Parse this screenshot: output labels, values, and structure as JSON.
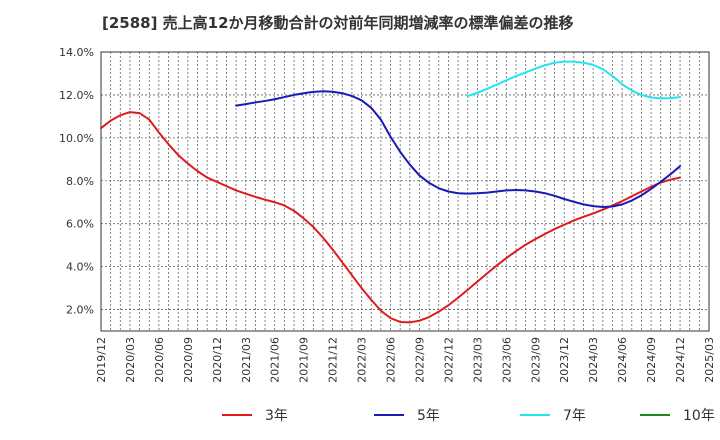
{
  "chart_data": {
    "type": "line",
    "title": "[2588]  売上高12か月移動合計の対前年同期増減率の標準偏差の推移",
    "xlabel": "",
    "ylabel": "",
    "ylim": [
      1.0,
      14.0
    ],
    "y_ticks": [
      2.0,
      4.0,
      6.0,
      8.0,
      10.0,
      12.0,
      14.0
    ],
    "y_tick_labels": [
      "2.0%",
      "4.0%",
      "6.0%",
      "8.0%",
      "10.0%",
      "12.0%",
      "14.0%"
    ],
    "x_tick_labels": [
      "2019/12",
      "2020/03",
      "2020/06",
      "2020/09",
      "2020/12",
      "2021/03",
      "2021/06",
      "2021/09",
      "2021/12",
      "2022/03",
      "2022/06",
      "2022/09",
      "2022/12",
      "2023/03",
      "2023/06",
      "2023/09",
      "2023/12",
      "2024/03",
      "2024/06",
      "2024/09",
      "2024/12",
      "2025/03"
    ],
    "grid": true,
    "legend_position": "bottom",
    "series": [
      {
        "name": "3年",
        "color": "#e01b1b",
        "points": [
          [
            "2019/12",
            10.45
          ],
          [
            "2020/01",
            10.8
          ],
          [
            "2020/02",
            11.05
          ],
          [
            "2020/03",
            11.2
          ],
          [
            "2020/04",
            11.15
          ],
          [
            "2020/05",
            10.85
          ],
          [
            "2020/06",
            10.25
          ],
          [
            "2020/07",
            9.7
          ],
          [
            "2020/08",
            9.2
          ],
          [
            "2020/09",
            8.8
          ],
          [
            "2020/10",
            8.45
          ],
          [
            "2020/11",
            8.15
          ],
          [
            "2020/12",
            7.95
          ],
          [
            "2021/01",
            7.75
          ],
          [
            "2021/02",
            7.55
          ],
          [
            "2021/03",
            7.4
          ],
          [
            "2021/04",
            7.25
          ],
          [
            "2021/05",
            7.12
          ],
          [
            "2021/06",
            7.0
          ],
          [
            "2021/07",
            6.85
          ],
          [
            "2021/08",
            6.6
          ],
          [
            "2021/09",
            6.25
          ],
          [
            "2021/10",
            5.85
          ],
          [
            "2021/11",
            5.35
          ],
          [
            "2021/12",
            4.8
          ],
          [
            "2022/01",
            4.2
          ],
          [
            "2022/02",
            3.6
          ],
          [
            "2022/03",
            3.0
          ],
          [
            "2022/04",
            2.45
          ],
          [
            "2022/05",
            1.95
          ],
          [
            "2022/06",
            1.6
          ],
          [
            "2022/07",
            1.42
          ],
          [
            "2022/08",
            1.4
          ],
          [
            "2022/09",
            1.48
          ],
          [
            "2022/10",
            1.65
          ],
          [
            "2022/11",
            1.9
          ],
          [
            "2022/12",
            2.2
          ],
          [
            "2023/01",
            2.55
          ],
          [
            "2023/02",
            2.92
          ],
          [
            "2023/03",
            3.3
          ],
          [
            "2023/04",
            3.68
          ],
          [
            "2023/05",
            4.05
          ],
          [
            "2023/06",
            4.4
          ],
          [
            "2023/07",
            4.72
          ],
          [
            "2023/08",
            5.02
          ],
          [
            "2023/09",
            5.28
          ],
          [
            "2023/10",
            5.52
          ],
          [
            "2023/11",
            5.75
          ],
          [
            "2023/12",
            5.95
          ],
          [
            "2024/01",
            6.15
          ],
          [
            "2024/02",
            6.32
          ],
          [
            "2024/03",
            6.48
          ],
          [
            "2024/04",
            6.65
          ],
          [
            "2024/05",
            6.85
          ],
          [
            "2024/06",
            7.05
          ],
          [
            "2024/07",
            7.28
          ],
          [
            "2024/08",
            7.5
          ],
          [
            "2024/09",
            7.72
          ],
          [
            "2024/10",
            7.92
          ],
          [
            "2024/11",
            8.05
          ],
          [
            "2024/12",
            8.15
          ]
        ]
      },
      {
        "name": "5年",
        "color": "#1a1ab8",
        "points": [
          [
            "2021/02",
            11.5
          ],
          [
            "2021/03",
            11.57
          ],
          [
            "2021/04",
            11.65
          ],
          [
            "2021/05",
            11.72
          ],
          [
            "2021/06",
            11.8
          ],
          [
            "2021/07",
            11.9
          ],
          [
            "2021/08",
            12.0
          ],
          [
            "2021/09",
            12.08
          ],
          [
            "2021/10",
            12.14
          ],
          [
            "2021/11",
            12.17
          ],
          [
            "2021/12",
            12.15
          ],
          [
            "2022/01",
            12.08
          ],
          [
            "2022/02",
            11.95
          ],
          [
            "2022/03",
            11.75
          ],
          [
            "2022/04",
            11.4
          ],
          [
            "2022/05",
            10.85
          ],
          [
            "2022/06",
            10.05
          ],
          [
            "2022/07",
            9.35
          ],
          [
            "2022/08",
            8.75
          ],
          [
            "2022/09",
            8.25
          ],
          [
            "2022/10",
            7.9
          ],
          [
            "2022/11",
            7.65
          ],
          [
            "2022/12",
            7.5
          ],
          [
            "2023/01",
            7.42
          ],
          [
            "2023/02",
            7.4
          ],
          [
            "2023/03",
            7.42
          ],
          [
            "2023/04",
            7.45
          ],
          [
            "2023/05",
            7.5
          ],
          [
            "2023/06",
            7.55
          ],
          [
            "2023/07",
            7.57
          ],
          [
            "2023/08",
            7.55
          ],
          [
            "2023/09",
            7.5
          ],
          [
            "2023/10",
            7.42
          ],
          [
            "2023/11",
            7.3
          ],
          [
            "2023/12",
            7.15
          ],
          [
            "2024/01",
            7.02
          ],
          [
            "2024/02",
            6.9
          ],
          [
            "2024/03",
            6.82
          ],
          [
            "2024/04",
            6.78
          ],
          [
            "2024/05",
            6.8
          ],
          [
            "2024/06",
            6.9
          ],
          [
            "2024/07",
            7.08
          ],
          [
            "2024/08",
            7.32
          ],
          [
            "2024/09",
            7.62
          ],
          [
            "2024/10",
            7.95
          ],
          [
            "2024/11",
            8.3
          ],
          [
            "2024/12",
            8.68
          ]
        ]
      },
      {
        "name": "7年",
        "color": "#22e5ee",
        "points": [
          [
            "2023/02",
            11.95
          ],
          [
            "2023/03",
            12.1
          ],
          [
            "2023/04",
            12.28
          ],
          [
            "2023/05",
            12.48
          ],
          [
            "2023/06",
            12.68
          ],
          [
            "2023/07",
            12.88
          ],
          [
            "2023/08",
            13.05
          ],
          [
            "2023/09",
            13.22
          ],
          [
            "2023/10",
            13.38
          ],
          [
            "2023/11",
            13.5
          ],
          [
            "2023/12",
            13.55
          ],
          [
            "2024/01",
            13.55
          ],
          [
            "2024/02",
            13.5
          ],
          [
            "2024/03",
            13.4
          ],
          [
            "2024/04",
            13.2
          ],
          [
            "2024/05",
            12.88
          ],
          [
            "2024/06",
            12.5
          ],
          [
            "2024/07",
            12.2
          ],
          [
            "2024/08",
            12.0
          ],
          [
            "2024/09",
            11.88
          ],
          [
            "2024/10",
            11.84
          ],
          [
            "2024/11",
            11.85
          ],
          [
            "2024/12",
            11.9
          ]
        ]
      },
      {
        "name": "10年",
        "color": "#1a8a1a",
        "points": []
      }
    ]
  }
}
